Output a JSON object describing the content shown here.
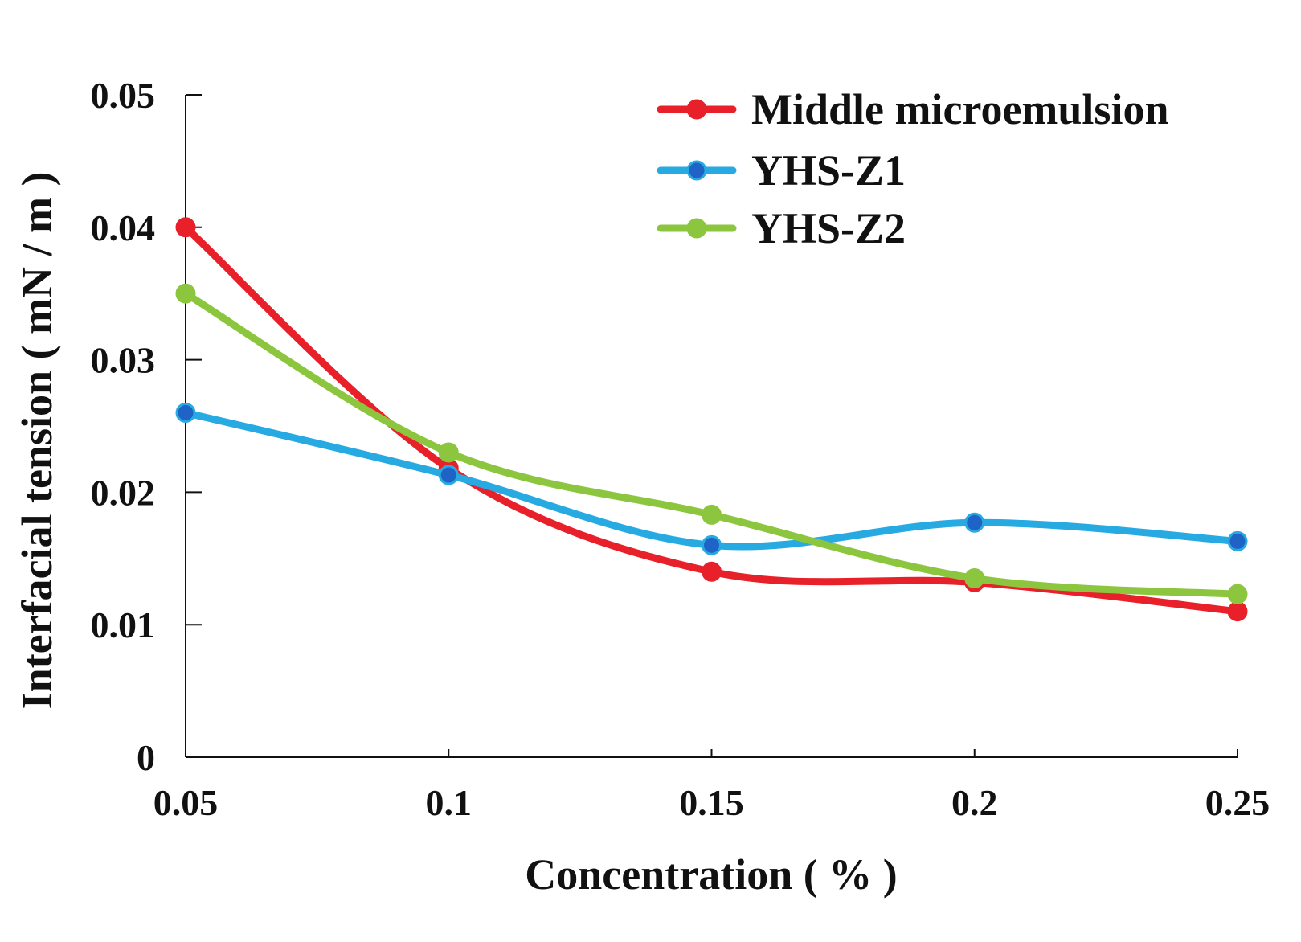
{
  "chart_data": {
    "type": "line",
    "title": "",
    "xlabel": "Concentration ( % )",
    "ylabel": "Interfacial tension ( mN / m )",
    "x": [
      0.05,
      0.1,
      0.15,
      0.2,
      0.25
    ],
    "x_tick_labels": [
      "0.05",
      "0.1",
      "0.15",
      "0.2",
      "0.25"
    ],
    "y_tick_labels": [
      "0",
      "0.01",
      "0.02",
      "0.03",
      "0.04",
      "0.05"
    ],
    "y_ticks": [
      0,
      0.01,
      0.02,
      0.03,
      0.04,
      0.05
    ],
    "xlim": [
      0.05,
      0.25
    ],
    "ylim": [
      0,
      0.05
    ],
    "grid": false,
    "legend_position": "top-right",
    "smooth": true,
    "series": [
      {
        "name": "Middle microemulsion",
        "color": "#e8202a",
        "values": [
          0.04,
          0.0218,
          0.014,
          0.0132,
          0.011
        ]
      },
      {
        "name": "YHS-Z1",
        "color": "#27a9e1",
        "marker_color": "#1f63c6",
        "values": [
          0.026,
          0.0213,
          0.016,
          0.0177,
          0.0163
        ]
      },
      {
        "name": "YHS-Z2",
        "color": "#8cc63f",
        "values": [
          0.035,
          0.023,
          0.0183,
          0.0135,
          0.0123
        ]
      }
    ]
  }
}
